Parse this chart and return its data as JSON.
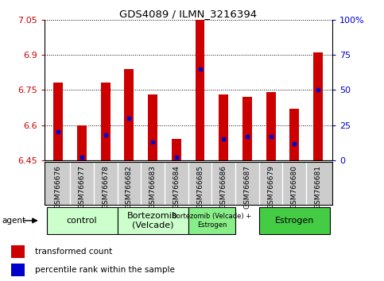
{
  "title": "GDS4089 / ILMN_3216394",
  "samples": [
    "GSM766676",
    "GSM766677",
    "GSM766678",
    "GSM766682",
    "GSM766683",
    "GSM766684",
    "GSM766685",
    "GSM766686",
    "GSM766687",
    "GSM766679",
    "GSM766680",
    "GSM766681"
  ],
  "transformed_count": [
    6.78,
    6.6,
    6.78,
    6.84,
    6.73,
    6.54,
    7.05,
    6.73,
    6.72,
    6.74,
    6.67,
    6.91
  ],
  "percentile_rank": [
    20,
    2,
    18,
    30,
    13,
    2,
    65,
    15,
    17,
    17,
    12,
    50
  ],
  "ymin": 6.45,
  "ymax": 7.05,
  "yticks": [
    6.45,
    6.6,
    6.75,
    6.9,
    7.05
  ],
  "ytick_labels": [
    "6.45",
    "6.6",
    "6.75",
    "6.9",
    "7.05"
  ],
  "right_yticks": [
    0,
    25,
    50,
    75,
    100
  ],
  "right_ytick_labels": [
    "0",
    "25",
    "50",
    "75",
    "100%"
  ],
  "bar_color": "#cc0000",
  "dot_color": "#0000cc",
  "group_info": [
    {
      "label": "control",
      "indices": [
        0,
        1,
        2
      ],
      "color": "#ccffcc",
      "fontsize": 8
    },
    {
      "label": "Bortezomib\n(Velcade)",
      "indices": [
        3,
        4,
        5
      ],
      "color": "#ccffcc",
      "fontsize": 8
    },
    {
      "label": "Bortezomib (Velcade) +\nEstrogen",
      "indices": [
        6,
        7
      ],
      "color": "#88ee88",
      "fontsize": 6
    },
    {
      "label": "Estrogen",
      "indices": [
        9,
        10,
        11
      ],
      "color": "#44cc44",
      "fontsize": 8
    }
  ],
  "legend_items": [
    {
      "label": "transformed count",
      "color": "#cc0000"
    },
    {
      "label": "percentile rank within the sample",
      "color": "#0000cc"
    }
  ],
  "bar_width": 0.4,
  "base_value": 6.45,
  "tick_bg_color": "#cccccc",
  "tick_sep_color": "#ffffff"
}
